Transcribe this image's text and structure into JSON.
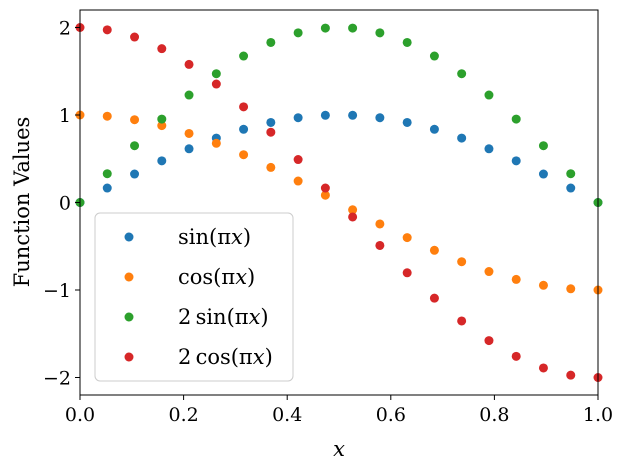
{
  "chart_data": {
    "type": "scatter",
    "xlabel": "x",
    "ylabel": "Function Values",
    "xlim": [
      0.0,
      1.0
    ],
    "ylim": [
      -2.2,
      2.2
    ],
    "xticks": [
      0.0,
      0.2,
      0.4,
      0.6,
      0.8,
      1.0
    ],
    "xtick_labels": [
      "0.0",
      "0.2",
      "0.4",
      "0.6",
      "0.8",
      "1.0"
    ],
    "yticks": [
      2,
      1,
      0,
      -1,
      -2
    ],
    "ytick_labels": [
      "2",
      "1",
      "0",
      "−1",
      "−2"
    ],
    "legend_position": "lower-left",
    "grid": false,
    "x": [
      0.0,
      0.0526,
      0.1053,
      0.1579,
      0.2105,
      0.2632,
      0.3158,
      0.3684,
      0.4211,
      0.4737,
      0.5263,
      0.5789,
      0.6316,
      0.6842,
      0.7368,
      0.7895,
      0.8421,
      0.8947,
      0.9474,
      1.0
    ],
    "series": [
      {
        "name": "sin(πx)",
        "color": "#1f77b4",
        "values": [
          0.0,
          0.165,
          0.325,
          0.476,
          0.614,
          0.736,
          0.837,
          0.915,
          0.969,
          0.997,
          0.997,
          0.969,
          0.915,
          0.837,
          0.736,
          0.614,
          0.476,
          0.325,
          0.165,
          0.0
        ]
      },
      {
        "name": "cos(πx)",
        "color": "#ff7f0e",
        "values": [
          1.0,
          0.986,
          0.946,
          0.879,
          0.789,
          0.677,
          0.546,
          0.401,
          0.245,
          0.083,
          -0.083,
          -0.245,
          -0.401,
          -0.546,
          -0.677,
          -0.789,
          -0.879,
          -0.946,
          -0.986,
          -1.0
        ]
      },
      {
        "name": "2sin(πx)",
        "color": "#2ca02c",
        "values": [
          0.0,
          0.329,
          0.649,
          0.953,
          1.228,
          1.472,
          1.674,
          1.829,
          1.939,
          1.993,
          1.993,
          1.939,
          1.829,
          1.674,
          1.472,
          1.228,
          0.953,
          0.649,
          0.329,
          0.0
        ]
      },
      {
        "name": "2cos(πx)",
        "color": "#d62728",
        "values": [
          2.0,
          1.973,
          1.891,
          1.758,
          1.578,
          1.354,
          1.093,
          0.803,
          0.491,
          0.165,
          -0.165,
          -0.491,
          -0.803,
          -1.093,
          -1.354,
          -1.578,
          -1.758,
          -1.891,
          -1.973,
          -2.0
        ]
      }
    ]
  },
  "legend": {
    "items": [
      {
        "prefix": "",
        "func": "sin",
        "arg_open": "(π",
        "arg_var": "x",
        "arg_close": ")"
      },
      {
        "prefix": "",
        "func": "cos",
        "arg_open": "(π",
        "arg_var": "x",
        "arg_close": ")"
      },
      {
        "prefix": "2",
        "func": "sin",
        "arg_open": "(π",
        "arg_var": "x",
        "arg_close": ")"
      },
      {
        "prefix": "2",
        "func": "cos",
        "arg_open": "(π",
        "arg_var": "x",
        "arg_close": ")"
      }
    ]
  }
}
